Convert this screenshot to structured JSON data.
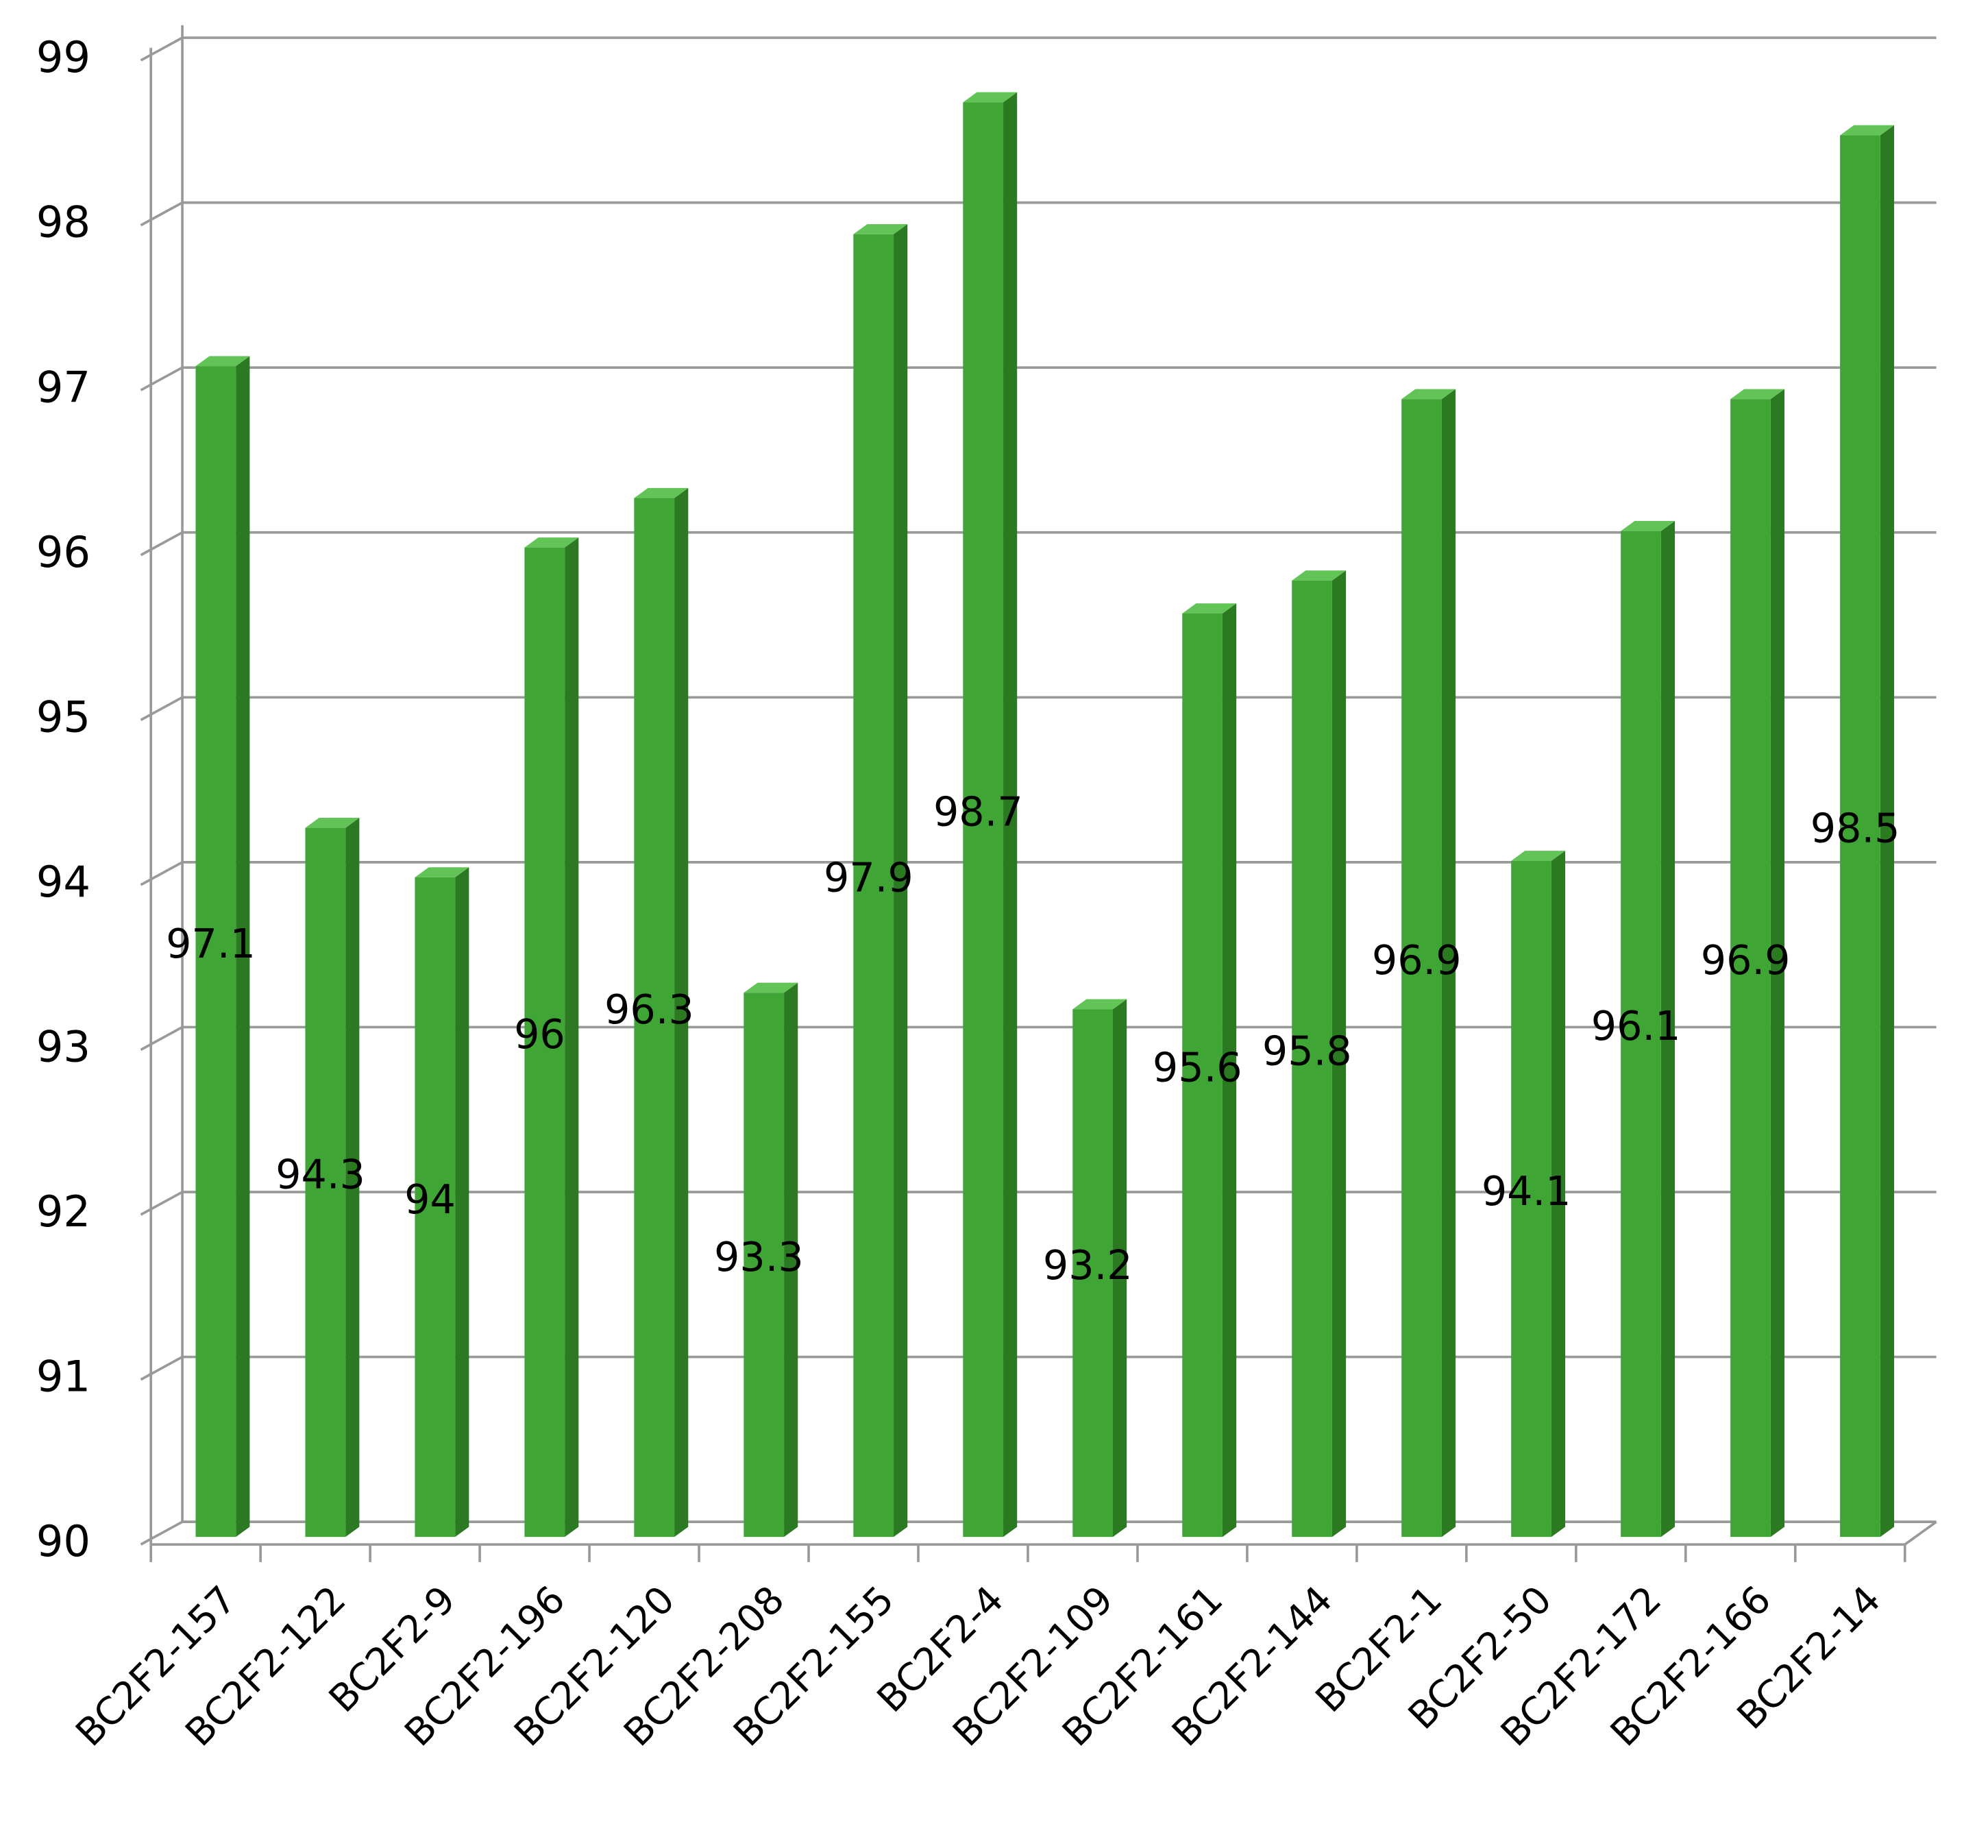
{
  "chart_data": {
    "type": "bar",
    "categories": [
      "BC2F2-157",
      "BC2F2-122",
      "BC2F2-9",
      "BC2F2-196",
      "BC2F2-120",
      "BC2F2-208",
      "BC2F2-155",
      "BC2F2-4",
      "BC2F2-109",
      "BC2F2-161",
      "BC2F2-144",
      "BC2F2-1",
      "BC2F2-50",
      "BC2F2-172",
      "BC2F2-166",
      "BC2F2-14"
    ],
    "values": [
      97.1,
      94.3,
      94,
      96,
      96.3,
      93.3,
      97.9,
      98.7,
      93.2,
      95.6,
      95.8,
      96.9,
      94.1,
      96.1,
      96.9,
      98.5
    ],
    "color": "#3fa535",
    "ylim": [
      90,
      99
    ],
    "yticks": [
      90,
      91,
      92,
      93,
      94,
      95,
      96,
      97,
      98,
      99
    ],
    "grid": true
  }
}
